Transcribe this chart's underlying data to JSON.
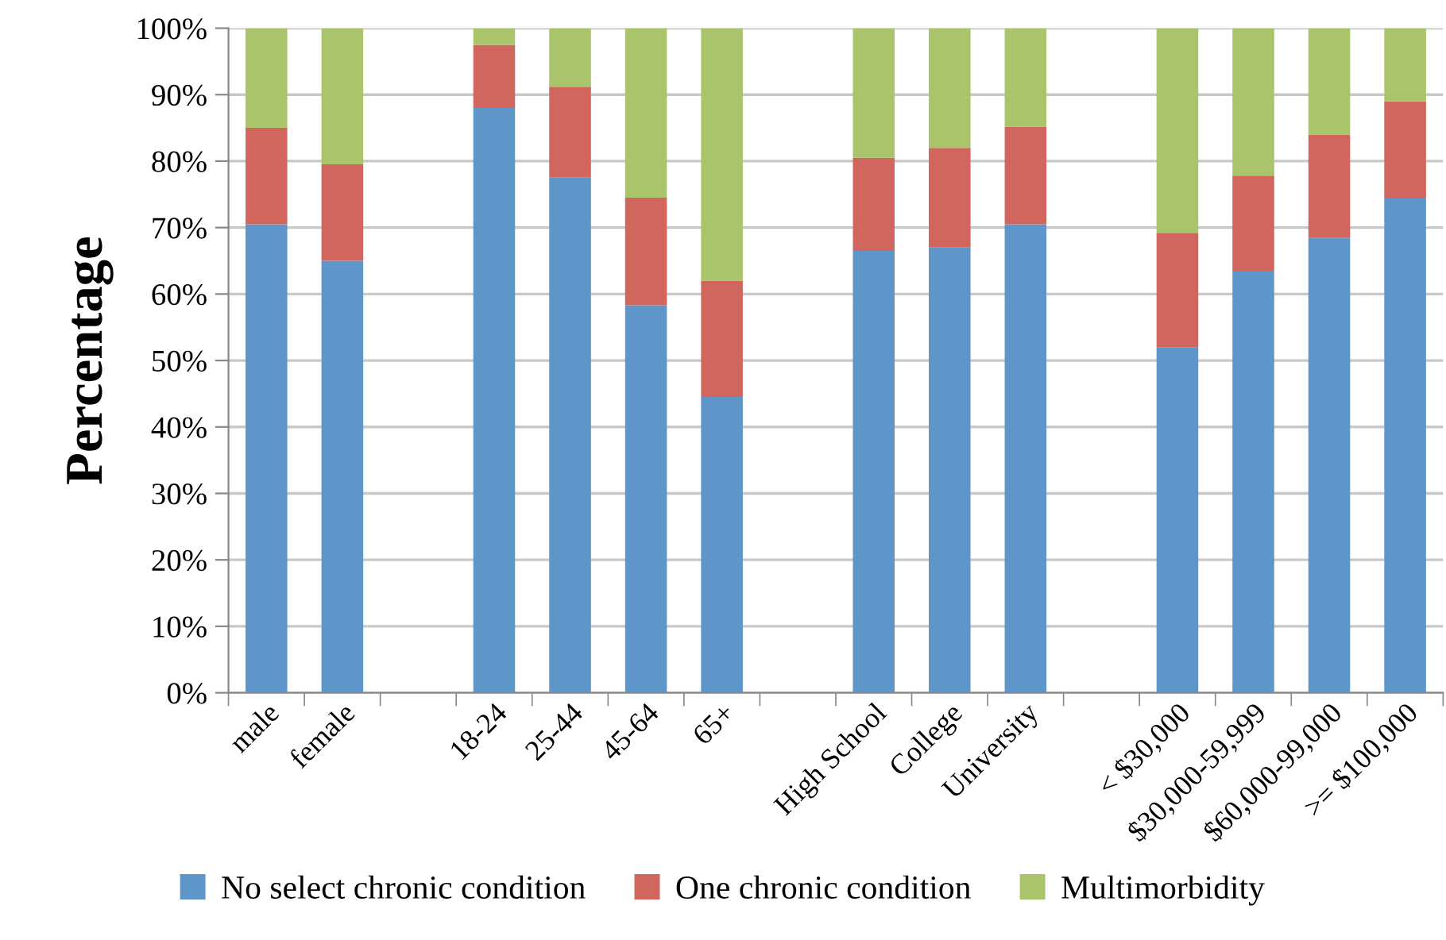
{
  "chart_data": {
    "type": "bar",
    "stacked": true,
    "ylabel": "Percentage",
    "categories": [
      "male",
      "female",
      null,
      "18-24",
      "25-44",
      "45-64",
      "65+",
      null,
      "High School",
      "College",
      "University",
      null,
      "< $30,000",
      "$30,000-59,999",
      "$60,000-99,000",
      ">= $100,000"
    ],
    "series": [
      {
        "name": "No select chronic condition",
        "color": "#5f96c9",
        "values": [
          70.5,
          65,
          null,
          88,
          77.5,
          58.3,
          44.5,
          null,
          66.5,
          67,
          70.5,
          null,
          52,
          63.5,
          68.5,
          74.5
        ]
      },
      {
        "name": "One chronic condition",
        "color": "#d0665e",
        "values": [
          14.5,
          14.5,
          null,
          9.5,
          13.7,
          16.2,
          17.5,
          null,
          14,
          15,
          14.7,
          null,
          17.2,
          14.3,
          15.5,
          14.5
        ]
      },
      {
        "name": "Multimorbidity",
        "color": "#a9c46a",
        "values": [
          15,
          20.5,
          null,
          2.5,
          8.8,
          25.5,
          38,
          null,
          19.5,
          18,
          14.8,
          null,
          30.8,
          22.2,
          16,
          11
        ]
      }
    ],
    "ylim": [
      0,
      100
    ],
    "yticks": [
      {
        "value": 0,
        "label": "0%"
      },
      {
        "value": 10,
        "label": "10%"
      },
      {
        "value": 20,
        "label": "20%"
      },
      {
        "value": 30,
        "label": "30%"
      },
      {
        "value": 40,
        "label": "40%"
      },
      {
        "value": 50,
        "label": "50%"
      },
      {
        "value": 60,
        "label": "60%"
      },
      {
        "value": 70,
        "label": "70%"
      },
      {
        "value": 80,
        "label": "80%"
      },
      {
        "value": 90,
        "label": "90%"
      },
      {
        "value": 100,
        "label": "100%"
      }
    ],
    "grid": "y",
    "legend": "bottom"
  }
}
